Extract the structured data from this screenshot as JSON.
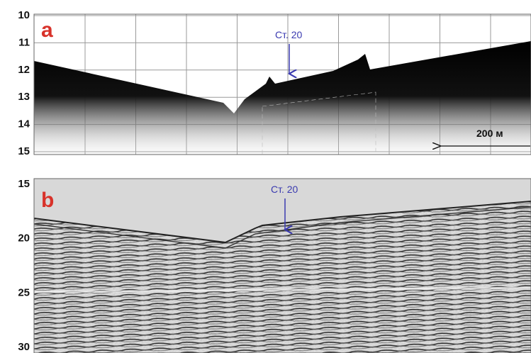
{
  "panels": [
    {
      "label": "a",
      "yticks": [
        10,
        11,
        12,
        13,
        14,
        15
      ],
      "station": "Ст. 20",
      "scale": "200 м"
    },
    {
      "label": "b",
      "yticks": [
        15,
        20,
        25,
        30
      ],
      "station": "Ст. 20"
    }
  ]
}
